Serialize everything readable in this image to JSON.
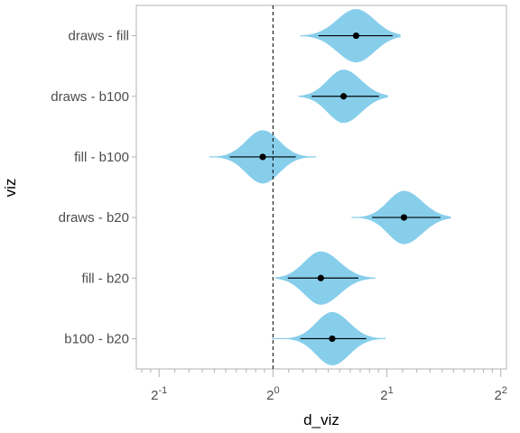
{
  "chart_data": {
    "type": "violin",
    "xlabel": "d_viz",
    "ylabel": "viz",
    "x_scale": "log2",
    "xlim": [
      -1.2,
      2.05
    ],
    "x_ticks": [
      {
        "base": "2",
        "exp": "-1",
        "value": -1
      },
      {
        "base": "2",
        "exp": "0",
        "value": 0
      },
      {
        "base": "2",
        "exp": "1",
        "value": 1
      },
      {
        "base": "2",
        "exp": "2",
        "value": 2
      }
    ],
    "reference_line": {
      "x": 0,
      "style": "dashed"
    },
    "grid": false,
    "fill_color": "#87ceeb",
    "categories": [
      "draws - fill",
      "draws - b100",
      "fill - b100",
      "draws - b20",
      "fill - b20",
      "b100 - b20"
    ],
    "distributions": [
      {
        "label": "draws - fill",
        "point": 0.73,
        "interval": [
          0.4,
          1.05
        ],
        "range": [
          0.24,
          1.12
        ]
      },
      {
        "label": "draws - b100",
        "point": 0.62,
        "interval": [
          0.34,
          0.93
        ],
        "range": [
          0.22,
          1.01
        ]
      },
      {
        "label": "fill - b100",
        "point": -0.09,
        "interval": [
          -0.38,
          0.2
        ],
        "range": [
          -0.56,
          0.38
        ]
      },
      {
        "label": "draws - b20",
        "point": 1.15,
        "interval": [
          0.87,
          1.47
        ],
        "range": [
          0.69,
          1.56
        ]
      },
      {
        "label": "fill - b20",
        "point": 0.42,
        "interval": [
          0.13,
          0.75
        ],
        "range": [
          0.02,
          0.9
        ]
      },
      {
        "label": "b100 - b20",
        "point": 0.52,
        "interval": [
          0.24,
          0.82
        ],
        "range": [
          -0.01,
          0.99
        ]
      }
    ]
  }
}
